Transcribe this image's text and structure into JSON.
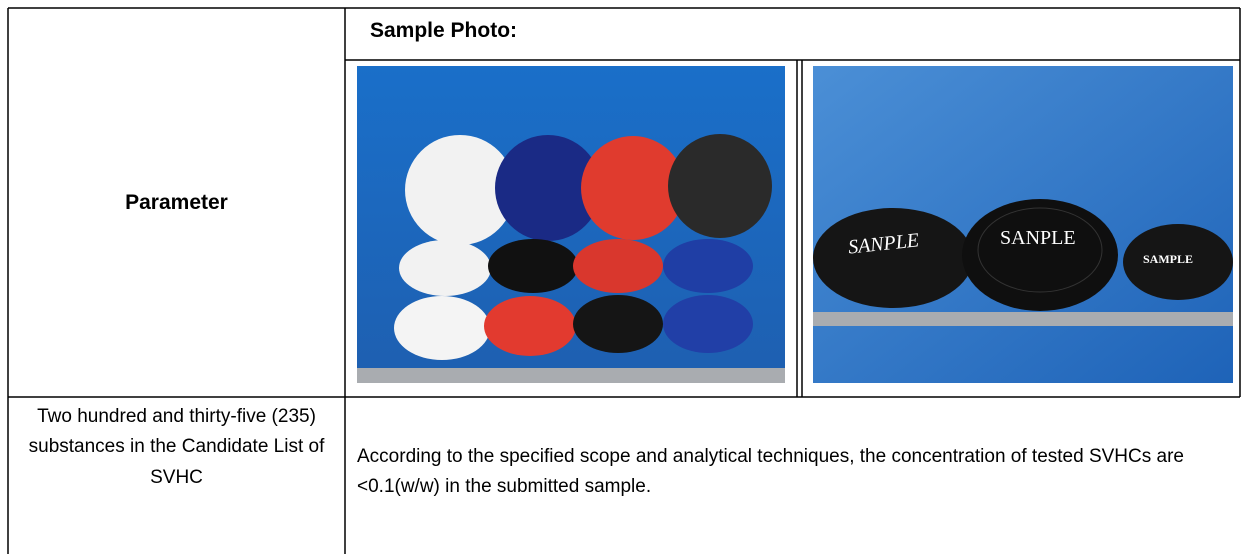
{
  "table": {
    "header": {
      "parameter": "Parameter",
      "sample_photo": "Sample Photo:"
    },
    "photo_labels": [
      "SANPLE",
      "SANPLE",
      "SAMPLE"
    ],
    "rows": [
      [
        "Two hundred and thirty-five (235) substances in the Candidate List of SVHC",
        "According to the specified scope and analytical techniques, the concentration of tested SVHCs are <0.1(w/w) in the submitted sample."
      ]
    ]
  }
}
